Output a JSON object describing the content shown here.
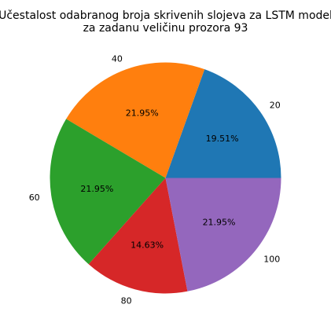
{
  "chart_data": {
    "type": "pie",
    "title_lines": [
      "Učestalost odabranog broja skrivenih slojeva za LSTM model",
      "za zadanu veličinu prozora 93"
    ],
    "categories": [
      "20",
      "40",
      "60",
      "80",
      "100"
    ],
    "values": [
      19.51,
      21.95,
      21.95,
      14.63,
      21.95
    ],
    "value_labels": [
      "19.51%",
      "21.95%",
      "21.95%",
      "14.63%",
      "21.95%"
    ],
    "colors": [
      "#1f77b4",
      "#ff7f0e",
      "#2ca02c",
      "#d62728",
      "#9467bd"
    ],
    "start_angle_deg": 0,
    "direction": "counterclockwise",
    "legend": "none"
  }
}
